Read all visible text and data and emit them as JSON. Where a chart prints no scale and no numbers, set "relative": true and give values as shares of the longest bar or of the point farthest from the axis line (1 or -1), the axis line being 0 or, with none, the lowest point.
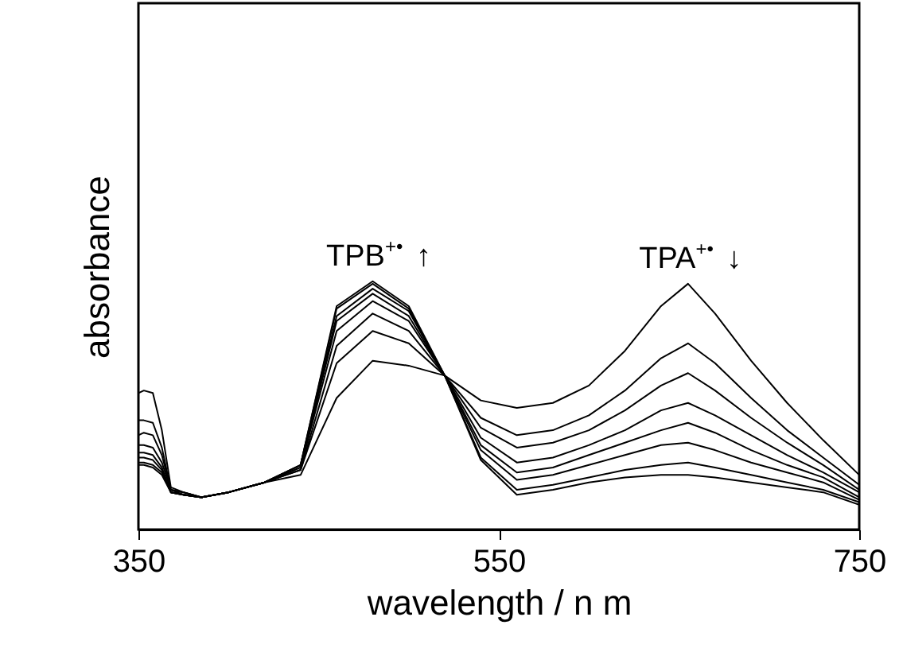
{
  "chart_data": {
    "type": "line",
    "xlabel": "wavelength / n m",
    "ylabel": "absorbance",
    "relative": true,
    "xlim": [
      350,
      750
    ],
    "xticks": [
      350,
      550,
      750
    ],
    "x": [
      350,
      353,
      358,
      363,
      368,
      375,
      385,
      400,
      420,
      440,
      460,
      480,
      500,
      520,
      540,
      560,
      580,
      600,
      620,
      640,
      655,
      670,
      690,
      710,
      730,
      750
    ],
    "series": [
      {
        "color": "#000000",
        "values": [
          0.55,
          0.56,
          0.55,
          0.4,
          0.17,
          0.15,
          0.13,
          0.15,
          0.19,
          0.22,
          0.53,
          0.68,
          0.66,
          0.62,
          0.52,
          0.49,
          0.51,
          0.58,
          0.72,
          0.9,
          0.99,
          0.87,
          0.68,
          0.51,
          0.36,
          0.22
        ]
      },
      {
        "color": "#000000",
        "values": [
          0.44,
          0.44,
          0.43,
          0.33,
          0.16,
          0.15,
          0.13,
          0.15,
          0.19,
          0.24,
          0.67,
          0.8,
          0.75,
          0.62,
          0.45,
          0.38,
          0.4,
          0.46,
          0.56,
          0.69,
          0.75,
          0.67,
          0.53,
          0.4,
          0.29,
          0.18
        ]
      },
      {
        "color": "#000000",
        "values": [
          0.38,
          0.39,
          0.38,
          0.3,
          0.16,
          0.15,
          0.13,
          0.15,
          0.19,
          0.24,
          0.74,
          0.87,
          0.8,
          0.62,
          0.41,
          0.33,
          0.35,
          0.4,
          0.48,
          0.58,
          0.63,
          0.56,
          0.45,
          0.35,
          0.26,
          0.16
        ]
      },
      {
        "color": "#000000",
        "values": [
          0.34,
          0.34,
          0.33,
          0.27,
          0.16,
          0.14,
          0.13,
          0.15,
          0.19,
          0.25,
          0.8,
          0.92,
          0.84,
          0.62,
          0.37,
          0.27,
          0.29,
          0.34,
          0.4,
          0.48,
          0.51,
          0.46,
          0.38,
          0.3,
          0.23,
          0.15
        ]
      },
      {
        "color": "#000000",
        "values": [
          0.31,
          0.31,
          0.3,
          0.25,
          0.15,
          0.14,
          0.13,
          0.15,
          0.19,
          0.25,
          0.84,
          0.95,
          0.86,
          0.62,
          0.34,
          0.23,
          0.25,
          0.3,
          0.35,
          0.4,
          0.43,
          0.39,
          0.32,
          0.26,
          0.21,
          0.13
        ]
      },
      {
        "color": "#000000",
        "values": [
          0.29,
          0.29,
          0.28,
          0.24,
          0.15,
          0.14,
          0.13,
          0.15,
          0.19,
          0.26,
          0.86,
          0.97,
          0.88,
          0.62,
          0.32,
          0.2,
          0.22,
          0.26,
          0.3,
          0.34,
          0.35,
          0.32,
          0.27,
          0.23,
          0.19,
          0.12
        ]
      },
      {
        "color": "#000000",
        "values": [
          0.27,
          0.27,
          0.26,
          0.23,
          0.15,
          0.14,
          0.13,
          0.15,
          0.19,
          0.26,
          0.89,
          0.99,
          0.89,
          0.62,
          0.29,
          0.16,
          0.18,
          0.21,
          0.24,
          0.26,
          0.27,
          0.25,
          0.22,
          0.19,
          0.16,
          0.11
        ]
      },
      {
        "color": "#000000",
        "values": [
          0.26,
          0.26,
          0.25,
          0.22,
          0.15,
          0.14,
          0.13,
          0.15,
          0.19,
          0.26,
          0.9,
          1.0,
          0.9,
          0.62,
          0.28,
          0.14,
          0.16,
          0.19,
          0.21,
          0.22,
          0.22,
          0.21,
          0.19,
          0.17,
          0.15,
          0.1
        ]
      }
    ],
    "annotations": [
      {
        "text": "TPB$^{+•}$ ↑",
        "x": 482,
        "y": 1.0
      },
      {
        "text": "TPA$^{+•}$ ↓",
        "x": 655,
        "y": 0.99
      }
    ]
  }
}
